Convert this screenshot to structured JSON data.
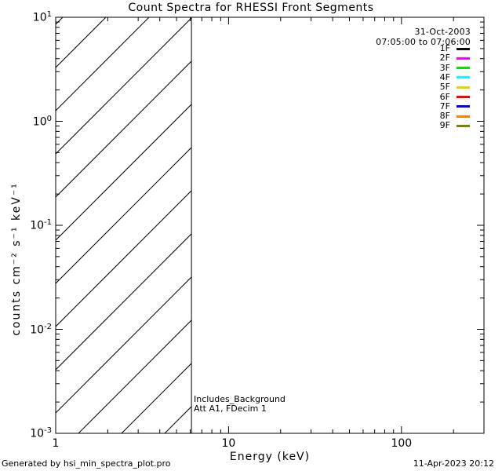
{
  "title": "Count Spectra for RHESSI Front Segments",
  "axes": {
    "x_label": "Energy (keV)",
    "y_label": "counts cm⁻² s⁻¹ keV⁻¹",
    "x_tick_labels": [
      "1",
      "10",
      "100"
    ],
    "y_tick_exponents": [
      1,
      0,
      -1,
      -2,
      -3
    ]
  },
  "legend": {
    "date": "31-Oct-2003",
    "time_range": "07:05:00 to 07:06:00",
    "entries": [
      {
        "label": "1F",
        "color": "#000000"
      },
      {
        "label": "2F",
        "color": "#FF00FF"
      },
      {
        "label": "3F",
        "color": "#00E500"
      },
      {
        "label": "4F",
        "color": "#00FFFF"
      },
      {
        "label": "5F",
        "color": "#D9D900"
      },
      {
        "label": "6F",
        "color": "#FF0000"
      },
      {
        "label": "7F",
        "color": "#0000FF"
      },
      {
        "label": "8F",
        "color": "#FF8000"
      },
      {
        "label": "9F",
        "color": "#7F7F00"
      }
    ]
  },
  "annotations": {
    "line1": "Includes_Background",
    "line2": "Att A1, FDecim 1"
  },
  "footer": {
    "left": "Generated by hsi_min_spectra_plot.pro",
    "right": "11-Apr-2023 20:12"
  },
  "chart_data": {
    "type": "line",
    "title": "Count Spectra for RHESSI Front Segments",
    "xlabel": "Energy (keV)",
    "ylabel": "counts cm^-2 s^-1 keV^-1",
    "xscale": "log",
    "yscale": "log",
    "xlim": [
      1,
      300
    ],
    "ylim": [
      0.001,
      10
    ],
    "x_major_ticks": [
      1,
      10,
      100
    ],
    "y_major_ticks": [
      10,
      1,
      0.1,
      0.01,
      0.001
    ],
    "grid": false,
    "legend_position": "top-right",
    "legend_entries": [
      "1F",
      "2F",
      "3F",
      "4F",
      "5F",
      "6F",
      "7F",
      "8F",
      "9F"
    ],
    "series": [],
    "note": "No spectral curves are drawn; plot area is empty except a diagonally hatched band at low energies.",
    "hatched_band": {
      "x_start": 1,
      "x_end": 6.1,
      "hatch": "45-degree diagonal lines",
      "boundary_line": true
    }
  }
}
